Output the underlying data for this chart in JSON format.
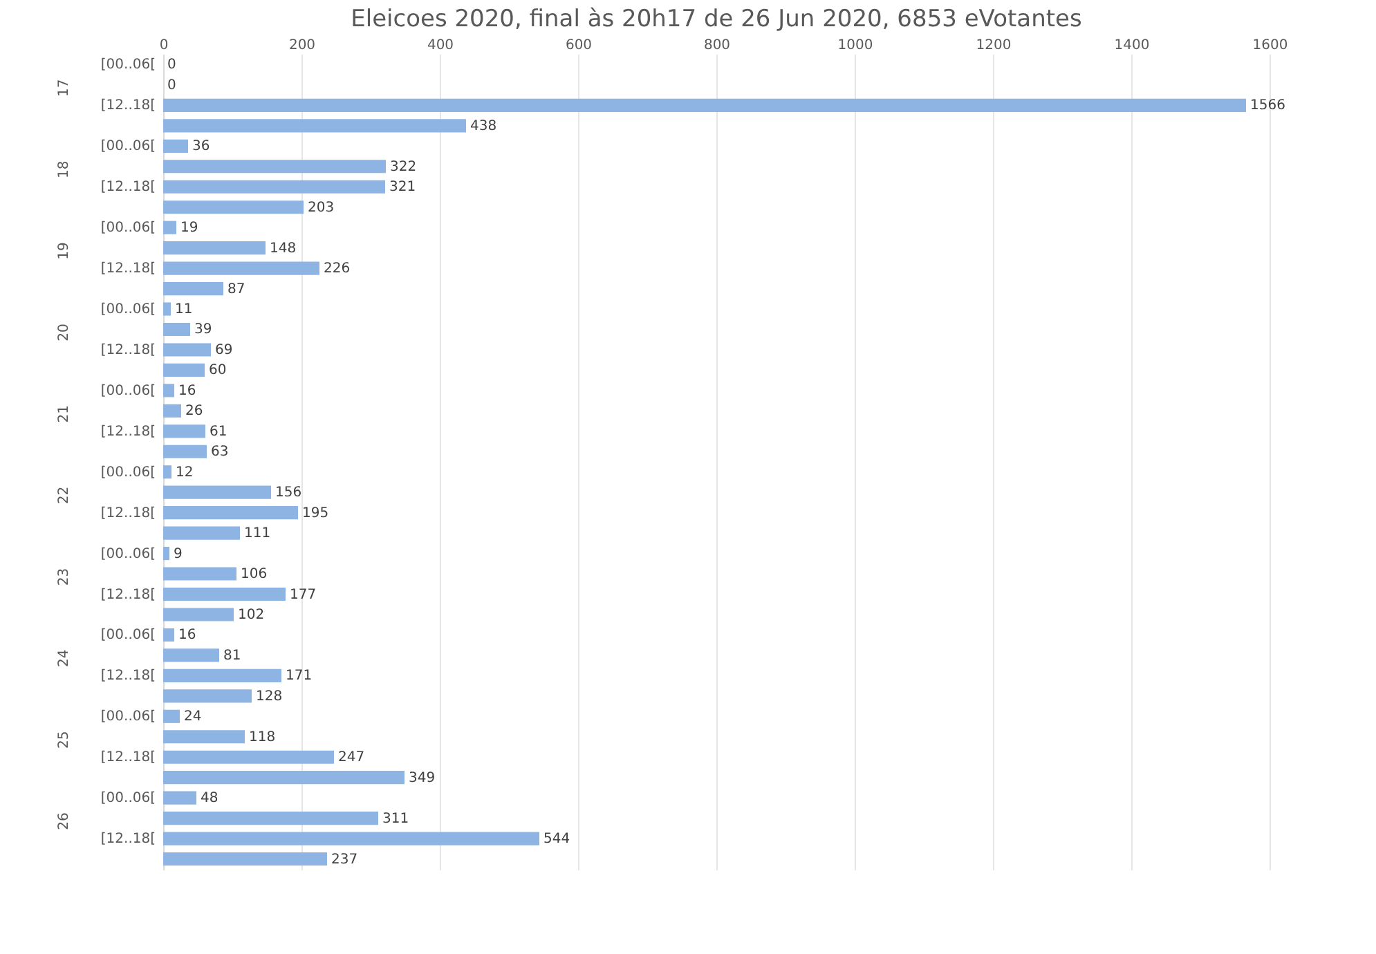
{
  "chart_data": {
    "type": "bar",
    "orientation": "horizontal",
    "title": "Eleicoes 2020, final às 20h17 de 26 Jun 2020, 6853 eVotantes",
    "categories": [
      "[00..06[",
      null,
      "[12..18[",
      null,
      "[00..06[",
      null,
      "[12..18[",
      null,
      "[00..06[",
      null,
      "[12..18[",
      null,
      "[00..06[",
      null,
      "[12..18[",
      null,
      "[00..06[",
      null,
      "[12..18[",
      null,
      "[00..06[",
      null,
      "[12..18[",
      null,
      "[00..06[",
      null,
      "[12..18[",
      null,
      "[00..06[",
      null,
      "[12..18[",
      null,
      "[00..06[",
      null,
      "[12..18[",
      null,
      "[00..06[",
      null,
      "[12..18[",
      null
    ],
    "values": [
      0,
      0,
      1566,
      438,
      36,
      322,
      321,
      203,
      19,
      148,
      226,
      87,
      11,
      39,
      69,
      60,
      16,
      26,
      61,
      63,
      12,
      156,
      195,
      111,
      9,
      106,
      177,
      102,
      16,
      81,
      171,
      128,
      24,
      118,
      247,
      349,
      48,
      311,
      544,
      237
    ],
    "color": "#8db4e2",
    "annotations": [
      "17",
      "18",
      "19",
      "20",
      "21",
      "22",
      "23",
      "24",
      "25",
      "26"
    ],
    "xlim": [
      0,
      1600
    ],
    "xticks": [
      0,
      200,
      400,
      600,
      800,
      1000,
      1200,
      1400,
      1600
    ],
    "grid": "x",
    "data_labels": true
  }
}
